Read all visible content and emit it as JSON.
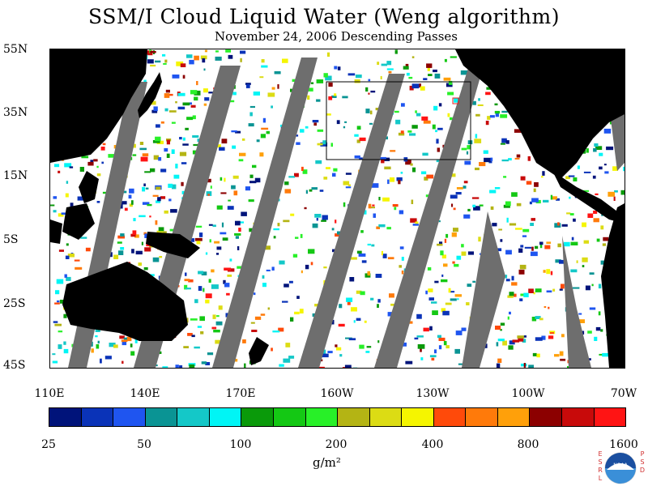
{
  "header": {
    "title": "SSM/I Cloud Liquid Water (Weng algorithm)",
    "subtitle": "November 24, 2006  Descending Passes"
  },
  "map": {
    "region": "Pacific Ocean",
    "lat_labels": [
      "55N",
      "35N",
      "15N",
      "5S",
      "25S",
      "45S"
    ],
    "lon_labels": [
      "110E",
      "140E",
      "170E",
      "160W",
      "130W",
      "100W",
      "70W"
    ],
    "land_color": "#000000",
    "no_data_color": "#6e6e6e",
    "background_color": "#ffffff"
  },
  "colorbar": {
    "colors": [
      "#00137a",
      "#0a33b8",
      "#1f55f0",
      "#0a9494",
      "#14c8c8",
      "#00f5f5",
      "#0a9a0a",
      "#14c814",
      "#28f028",
      "#b4b414",
      "#dcdc14",
      "#f5f500",
      "#ff4a0a",
      "#ff7a0a",
      "#ffa00a",
      "#8c0000",
      "#c80a0a",
      "#ff1414"
    ],
    "tick_labels": [
      "25",
      "50",
      "100",
      "200",
      "400",
      "800",
      "1600"
    ],
    "units": "g/m²"
  },
  "logo": {
    "name": "NOAA",
    "left_letters": [
      "E",
      "S",
      "R",
      "L"
    ],
    "right_letters": [
      "P",
      "S",
      "D"
    ]
  }
}
